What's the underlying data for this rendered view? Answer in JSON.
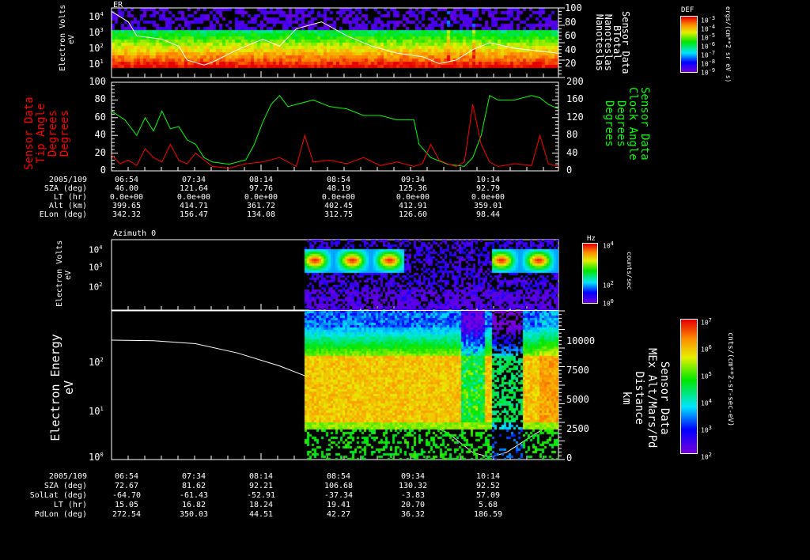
{
  "panel1": {
    "title": "ER",
    "ylabel": "Electron Volts",
    "yunit": "eV",
    "yticks": [
      "10",
      "10",
      "10",
      "10"
    ],
    "yexps": [
      "4",
      "3",
      "2",
      "1"
    ],
    "right_ticks": [
      "100",
      "80",
      "60",
      "40",
      "20"
    ],
    "right_label": [
      "Sensor Data",
      "BTotal",
      "Nanoteslas",
      "Nanoteslas"
    ],
    "colorbar": {
      "title": "DEF",
      "ticks": [
        "10",
        "10",
        "10",
        "10",
        "10",
        "10",
        "10"
      ],
      "exps": [
        "-3",
        "-4",
        "-5",
        "-6",
        "-7",
        "-8",
        "-9"
      ],
      "unit": "ergs/(cm**2 sr eV s)"
    }
  },
  "panel2": {
    "left_ticks": [
      "100",
      "80",
      "60",
      "40",
      "20",
      "0"
    ],
    "left_label": [
      "Sensor Data",
      "Tip Angle",
      "Degrees",
      "Degrees"
    ],
    "right_ticks": [
      "200",
      "160",
      "120",
      "80",
      "40",
      "0"
    ],
    "right_label": [
      "Sensor Data",
      "Clock Angle",
      "Degrees",
      "Degrees"
    ]
  },
  "table1": {
    "rows": [
      {
        "label": "2005/109",
        "values": [
          "06:54",
          "07:34",
          "08:14",
          "08:54",
          "09:34",
          "10:14"
        ]
      },
      {
        "label": "SZA (deg)",
        "values": [
          "46.00",
          "121.64",
          "97.76",
          "48.19",
          "125.36",
          "92.79"
        ]
      },
      {
        "label": "LT (hr)",
        "values": [
          "0.0e+00",
          "0.0e+00",
          "0.0e+00",
          "0.0e+00",
          "0.0e+00",
          "0.0e+00"
        ]
      },
      {
        "label": "Alt (km)",
        "values": [
          "399.65",
          "414.71",
          "361.72",
          "402.45",
          "412.91",
          "359.01"
        ]
      },
      {
        "label": "ELon (deg)",
        "values": [
          "342.32",
          "156.47",
          "134.08",
          "312.75",
          "126.60",
          "98.44"
        ]
      }
    ]
  },
  "panel3": {
    "title": "Azimuth 0",
    "ylabel": "Electron Volts",
    "yunit": "eV",
    "yticks": [
      "10",
      "10",
      "10"
    ],
    "yexps": [
      "4",
      "3",
      "2"
    ],
    "colorbar": {
      "title": "Hz",
      "ticks": [
        "10",
        "10",
        "10"
      ],
      "exps": [
        "4",
        "2",
        "0"
      ],
      "unit": "counts/sec"
    }
  },
  "panel4": {
    "ylabel": "Electron Energy",
    "yunit": "eV",
    "yticks": [
      "10",
      "10",
      "10"
    ],
    "yexps": [
      "2",
      "1",
      "0"
    ],
    "right_ticks": [
      "10000",
      "7500",
      "5000",
      "2500",
      "0"
    ],
    "right_label": [
      "Sensor Data",
      "MEx Alt/Mars/Pd",
      "Distance",
      "km"
    ],
    "colorbar": {
      "ticks": [
        "10",
        "10",
        "10",
        "10",
        "10",
        "10"
      ],
      "exps": [
        "7",
        "6",
        "5",
        "4",
        "3",
        "2"
      ],
      "unit": "cnts/(cm**2-sr-sec-eV)"
    }
  },
  "table2": {
    "rows": [
      {
        "label": "2005/109",
        "values": [
          "06:54",
          "07:34",
          "08:14",
          "08:54",
          "09:34",
          "10:14"
        ]
      },
      {
        "label": "SZA (deg)",
        "values": [
          "72.67",
          "81.62",
          "92.21",
          "106.68",
          "130.32",
          "92.52"
        ]
      },
      {
        "label": "SolLat (deg)",
        "values": [
          "-64.70",
          "-61.43",
          "-52.91",
          "-37.34",
          "-3.83",
          "57.09"
        ]
      },
      {
        "label": "LT (hr)",
        "values": [
          "15.05",
          "16.82",
          "18.24",
          "19.41",
          "20.70",
          "5.68"
        ]
      },
      {
        "label": "PdLon (deg)",
        "values": [
          "272.54",
          "350.03",
          "44.51",
          "42.27",
          "36.32",
          "186.59"
        ]
      }
    ]
  },
  "chart_data": [
    {
      "type": "heatmap",
      "title": "ER",
      "ylabel": "Electron Volts (eV)",
      "ylim": [
        3,
        20000
      ],
      "x_ticks": [
        "06:54",
        "07:34",
        "08:14",
        "08:54",
        "09:34",
        "10:14"
      ],
      "overlay": {
        "name": "BTotal (nT)",
        "ylim": [
          0,
          100
        ],
        "t_min": [
          0,
          10,
          15,
          30,
          40,
          45,
          55,
          60,
          75,
          90,
          100,
          110,
          125,
          140,
          155,
          170,
          185,
          195,
          205,
          215,
          225,
          240,
          255,
          266
        ],
        "values": [
          95,
          80,
          60,
          55,
          45,
          25,
          18,
          22,
          40,
          55,
          45,
          70,
          80,
          60,
          45,
          35,
          30,
          20,
          25,
          40,
          50,
          42,
          38,
          35
        ]
      }
    },
    {
      "type": "line",
      "ylim_left": [
        0,
        100
      ],
      "ylim_right": [
        0,
        200
      ],
      "series": [
        {
          "name": "Tip Angle (deg)",
          "color": "#ff0000",
          "t_min": [
            0,
            5,
            10,
            15,
            20,
            25,
            30,
            35,
            40,
            45,
            50,
            60,
            70,
            80,
            90,
            100,
            110,
            115,
            120,
            130,
            140,
            150,
            160,
            170,
            180,
            185,
            190,
            195,
            200,
            205,
            210,
            215,
            220,
            225,
            230,
            240,
            250,
            255,
            260,
            266
          ],
          "values": [
            18,
            8,
            12,
            6,
            25,
            15,
            10,
            30,
            12,
            8,
            20,
            5,
            3,
            8,
            10,
            15,
            5,
            40,
            10,
            12,
            8,
            15,
            6,
            10,
            5,
            8,
            30,
            12,
            8,
            5,
            10,
            75,
            30,
            10,
            5,
            8,
            6,
            40,
            8,
            5
          ]
        },
        {
          "name": "Clock Angle (deg)",
          "color": "#00ff00",
          "t_min": [
            0,
            8,
            15,
            20,
            25,
            30,
            35,
            40,
            45,
            50,
            55,
            60,
            70,
            80,
            85,
            90,
            95,
            100,
            105,
            110,
            120,
            130,
            140,
            150,
            160,
            170,
            180,
            183,
            190,
            200,
            210,
            215,
            220,
            225,
            230,
            240,
            250,
            255,
            260,
            266
          ],
          "values": [
            135,
            115,
            80,
            120,
            90,
            135,
            95,
            100,
            70,
            60,
            30,
            20,
            15,
            25,
            60,
            110,
            150,
            170,
            145,
            150,
            160,
            145,
            140,
            125,
            125,
            115,
            115,
            60,
            30,
            15,
            10,
            30,
            80,
            170,
            160,
            160,
            170,
            165,
            150,
            140
          ]
        }
      ]
    },
    {
      "type": "heatmap",
      "title": "Azimuth 0",
      "ylabel": "Electron Volts (eV)",
      "data_start": "08:40"
    },
    {
      "type": "heatmap",
      "ylabel": "Electron Energy (eV)",
      "ylim": [
        1,
        1000
      ],
      "data_start": "08:40",
      "overlay": {
        "name": "MEx Alt/Mars/Pd Distance (km)",
        "ylim": [
          0,
          12000
        ],
        "t_min": [
          0,
          25,
          50,
          75,
          100,
          125,
          150,
          175,
          200,
          215,
          225,
          235,
          250,
          266
        ],
        "values": [
          10200,
          10150,
          9900,
          9100,
          8000,
          6600,
          5200,
          3800,
          2300,
          600,
          200,
          600,
          2000,
          3400
        ]
      }
    }
  ]
}
